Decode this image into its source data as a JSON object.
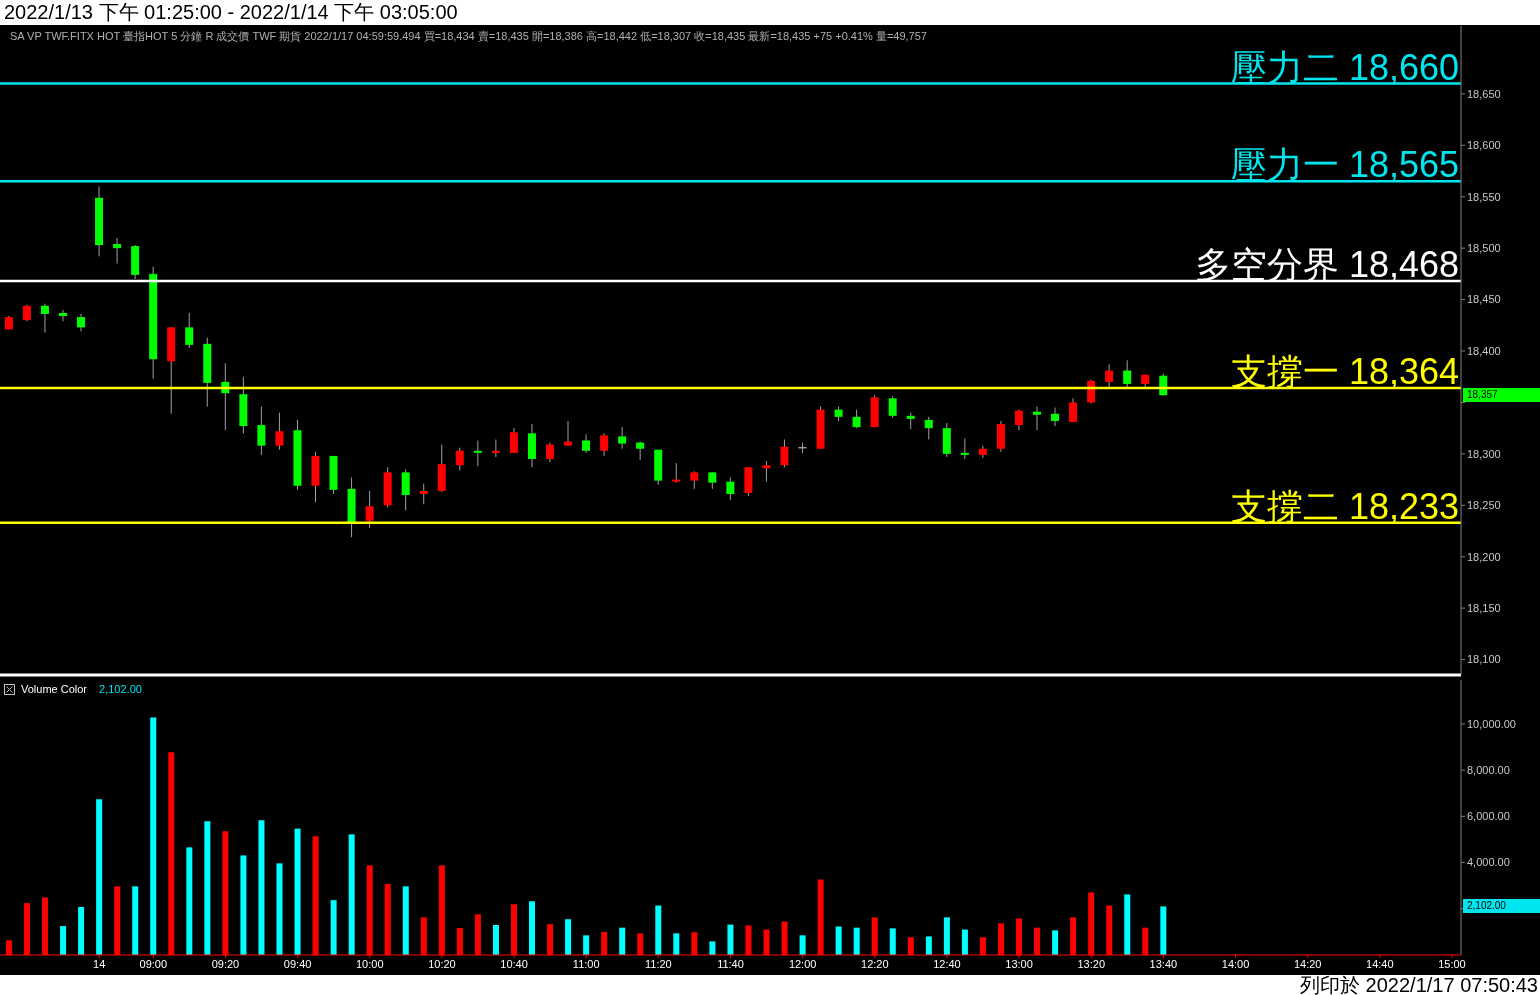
{
  "chart_data": [
    {
      "type": "candlestick",
      "title": "2022/1/13 下午 01:25:00 - 2022/1/14 下午 03:05:00",
      "categories": [
        null,
        null,
        null,
        null,
        null,
        null,
        null,
        null,
        null,
        null,
        null,
        null,
        null,
        null,
        null,
        null,
        null,
        null,
        null,
        null,
        null,
        null,
        null,
        null,
        null,
        null,
        null,
        null,
        null,
        null,
        null,
        null,
        null,
        null,
        null,
        null,
        null,
        null,
        null,
        null,
        null,
        null,
        null,
        null,
        null,
        null,
        null,
        null,
        null,
        null,
        null,
        null,
        null,
        null,
        null,
        null,
        null,
        null,
        null,
        null,
        null,
        null,
        null,
        null,
        null,
        null,
        null,
        null,
        null,
        null,
        null,
        null,
        null,
        null,
        null,
        null,
        null,
        null,
        null,
        null,
        null
      ],
      "ohlc": [
        [
          18421,
          18434,
          18421,
          18433
        ],
        [
          18430,
          18445,
          18429,
          18444
        ],
        [
          18444,
          18446,
          18418,
          18436
        ],
        [
          18437,
          18440,
          18429,
          18434
        ],
        [
          18433,
          18436,
          18419,
          18423
        ],
        [
          18549,
          18560,
          18492,
          18503
        ],
        [
          18504,
          18510,
          18485,
          18500
        ],
        [
          18502,
          18503,
          18470,
          18474
        ],
        [
          18475,
          18482,
          18373,
          18392
        ],
        [
          18390,
          18423,
          18339,
          18423
        ],
        [
          18423,
          18437,
          18403,
          18406
        ],
        [
          18407,
          18413,
          18346,
          18369
        ],
        [
          18370,
          18388,
          18323,
          18359
        ],
        [
          18358,
          18375,
          18320,
          18327
        ],
        [
          18328,
          18346,
          18299,
          18308
        ],
        [
          18308,
          18340,
          18304,
          18322
        ],
        [
          18323,
          18333,
          18265,
          18269
        ],
        [
          18269,
          18302,
          18253,
          18298
        ],
        [
          18298,
          18298,
          18261,
          18265
        ],
        [
          18266,
          18277,
          18219,
          18233
        ],
        [
          18235,
          18264,
          18228,
          18249
        ],
        [
          18250,
          18287,
          18248,
          18282
        ],
        [
          18282,
          18285,
          18245,
          18260
        ],
        [
          18261,
          18271,
          18251,
          18264
        ],
        [
          18264,
          18309,
          18263,
          18290
        ],
        [
          18289,
          18306,
          18284,
          18303
        ],
        [
          18303,
          18313,
          18288,
          18301
        ],
        [
          18301,
          18314,
          18297,
          18303
        ],
        [
          18301,
          18325,
          18301,
          18321
        ],
        [
          18320,
          18329,
          18287,
          18295
        ],
        [
          18295,
          18311,
          18292,
          18309
        ],
        [
          18308,
          18332,
          18308,
          18312
        ],
        [
          18313,
          18319,
          18301,
          18303
        ],
        [
          18303,
          18320,
          18298,
          18318
        ],
        [
          18317,
          18326,
          18305,
          18310
        ],
        [
          18311,
          18312,
          18294,
          18305
        ],
        [
          18304,
          18304,
          18270,
          18274
        ],
        [
          18273,
          18291,
          18272,
          18275
        ],
        [
          18274,
          18283,
          18266,
          18282
        ],
        [
          18282,
          18282,
          18266,
          18272
        ],
        [
          18273,
          18277,
          18255,
          18261
        ],
        [
          18262,
          18287,
          18259,
          18287
        ],
        [
          18286,
          18293,
          18273,
          18289
        ],
        [
          18289,
          18314,
          18287,
          18307
        ],
        [
          18306,
          18311,
          18301,
          18306
        ],
        [
          18305,
          18346,
          18305,
          18343
        ],
        [
          18343,
          18346,
          18332,
          18336
        ],
        [
          18336,
          18343,
          18325,
          18326
        ],
        [
          18326,
          18357,
          18326,
          18355
        ],
        [
          18354,
          18356,
          18335,
          18337
        ],
        [
          18337,
          18340,
          18324,
          18334
        ],
        [
          18333,
          18336,
          18314,
          18325
        ],
        [
          18325,
          18330,
          18297,
          18300
        ],
        [
          18301,
          18315,
          18295,
          18299
        ],
        [
          18299,
          18308,
          18296,
          18305
        ],
        [
          18305,
          18332,
          18302,
          18329
        ],
        [
          18328,
          18343,
          18323,
          18342
        ],
        [
          18341,
          18346,
          18323,
          18338
        ],
        [
          18339,
          18345,
          18327,
          18332
        ],
        [
          18331,
          18354,
          18331,
          18350
        ],
        [
          18350,
          18372,
          18349,
          18371
        ],
        [
          18370,
          18387,
          18365,
          18381
        ],
        [
          18381,
          18391,
          18365,
          18368
        ],
        [
          18368,
          18377,
          18365,
          18377
        ],
        [
          18376,
          18378,
          18357,
          18357
        ],
        null,
        null,
        null,
        null,
        null,
        null,
        null,
        null,
        null,
        null,
        null,
        null,
        null,
        null,
        null,
        null
      ],
      "colors": [
        "#ff0000",
        "#ff0000",
        "#00ff00",
        "#00ff00",
        "#00ff00",
        "#00ff00",
        "#00ff00",
        "#00ff00",
        "#00ff00",
        "#ff0000",
        "#00ff00",
        "#00ff00",
        "#00ff00",
        "#00ff00",
        "#00ff00",
        "#ff0000",
        "#00ff00",
        "#ff0000",
        "#00ff00",
        "#00ff00",
        "#ff0000",
        "#ff0000",
        "#00ff00",
        "#ff0000",
        "#ff0000",
        "#ff0000",
        "#00ff00",
        "#ff0000",
        "#ff0000",
        "#00ff00",
        "#ff0000",
        "#ff0000",
        "#00ff00",
        "#ff0000",
        "#00ff00",
        "#00ff00",
        "#00ff00",
        "#ff0000",
        "#ff0000",
        "#00ff00",
        "#00ff00",
        "#ff0000",
        "#ff0000",
        "#ff0000",
        "#a0a0a0",
        "#ff0000",
        "#00ff00",
        "#00ff00",
        "#ff0000",
        "#00ff00",
        "#00ff00",
        "#00ff00",
        "#00ff00",
        "#00ff00",
        "#ff0000",
        "#ff0000",
        "#ff0000",
        "#00ff00",
        "#00ff00",
        "#ff0000",
        "#ff0000",
        "#ff0000",
        "#00ff00",
        "#ff0000",
        "#00ff00",
        null,
        null,
        null,
        null,
        null,
        null,
        null,
        null,
        null,
        null,
        null,
        null,
        null,
        null,
        null,
        null
      ],
      "ylim": [
        18085,
        18716
      ],
      "yticks": [
        {
          "value": 18100,
          "label": "18,100"
        },
        {
          "value": 18150,
          "label": "18,150"
        },
        {
          "value": 18200,
          "label": "18,200"
        },
        {
          "value": 18250,
          "label": "18,250"
        },
        {
          "value": 18300,
          "label": "18,300"
        },
        {
          "value": 18350,
          "label": null
        },
        {
          "value": 18400,
          "label": "18,400"
        },
        {
          "value": 18450,
          "label": "18,450"
        },
        {
          "value": 18500,
          "label": "18,500"
        },
        {
          "value": 18550,
          "label": "18,550"
        },
        {
          "value": 18600,
          "label": "18,600"
        },
        {
          "value": 18650,
          "label": "18,650"
        }
      ],
      "tick_labels": "y",
      "ref_lines": [
        {
          "axis": "y",
          "value": 18660,
          "label": "壓力二 18,660",
          "color": "#00e5ee"
        },
        {
          "axis": "y",
          "value": 18565,
          "label": "壓力一 18,565",
          "color": "#00e5ee"
        },
        {
          "axis": "y",
          "value": 18468,
          "label": "多空分界 18,468",
          "color": "#ffffff"
        },
        {
          "axis": "y",
          "value": 18364,
          "label": "支撐一 18,364",
          "color": "#ffff00"
        },
        {
          "axis": "y",
          "value": 18233,
          "label": "支撐二 18,233",
          "color": "#ffff00"
        }
      ],
      "annotations": [
        "SA VP TWF.FITX HOT 臺指HOT 5 分鐘 R 成交價 TWF 期貨 2022/1/17 04:59:59.494 買=18,434 賣=18,435 開=18,386 高=18,442 低=18,307 收=18,435 最新=18,435 +75 +0.41% 量=49,757",
        "18,357"
      ]
    },
    {
      "type": "bar",
      "categories": [
        null,
        null,
        null,
        null,
        null,
        "14",
        null,
        null,
        "09:00",
        null,
        null,
        null,
        "09:20",
        null,
        null,
        null,
        "09:40",
        null,
        null,
        null,
        "10:00",
        null,
        null,
        null,
        "10:20",
        null,
        null,
        null,
        "10:40",
        null,
        null,
        null,
        "11:00",
        null,
        null,
        null,
        "11:20",
        null,
        null,
        null,
        "11:40",
        null,
        null,
        null,
        "12:00",
        null,
        null,
        null,
        "12:20",
        null,
        null,
        null,
        "12:40",
        null,
        null,
        null,
        "13:00",
        null,
        null,
        null,
        "13:20",
        null,
        null,
        null,
        "13:40",
        null,
        null,
        null,
        "14:00",
        null,
        null,
        null,
        "14:20",
        null,
        null,
        null,
        "14:40",
        null,
        null,
        null,
        "15:00"
      ],
      "series": [
        {
          "name": "Volume Color",
          "values": [
            636,
            2245,
            2490,
            1251,
            2077,
            6742,
            2971,
            2971,
            10281,
            8776,
            4657,
            5784,
            5354,
            4309,
            5831,
            3965,
            5470,
            5139,
            2374,
            5220,
            3879,
            3070,
            2971,
            1630,
            3879,
            1170,
            1763,
            1299,
            2193,
            2326,
            1333,
            1548,
            851,
            1000,
            1183,
            937,
            2141,
            937,
            985,
            589,
            1316,
            1281,
            1101,
            1449,
            851,
            3268,
            1234,
            1183,
            1630,
            1152,
            770,
            804,
            1630,
            1101,
            770,
            1367,
            1582,
            1183,
            1066,
            1630,
            2705,
            2141,
            2623,
            1183,
            2102,
            null,
            null,
            null,
            null,
            null,
            null,
            null,
            null,
            null,
            null,
            null,
            null,
            null,
            null,
            null,
            null
          ],
          "colors": [
            "#ff0000",
            "#ff0000",
            "#ff0000",
            "#00ffff",
            "#00ffff",
            "#00ffff",
            "#ff0000",
            "#00ffff",
            "#00ffff",
            "#ff0000",
            "#00ffff",
            "#00ffff",
            "#ff0000",
            "#00ffff",
            "#00ffff",
            "#00ffff",
            "#00ffff",
            "#ff0000",
            "#00ffff",
            "#00ffff",
            "#ff0000",
            "#ff0000",
            "#00ffff",
            "#ff0000",
            "#ff0000",
            "#ff0000",
            "#ff0000",
            "#00ffff",
            "#ff0000",
            "#00ffff",
            "#ff0000",
            "#00ffff",
            "#00ffff",
            "#ff0000",
            "#00ffff",
            "#ff0000",
            "#00ffff",
            "#00ffff",
            "#ff0000",
            "#00ffff",
            "#00ffff",
            "#ff0000",
            "#ff0000",
            "#ff0000",
            "#00ffff",
            "#ff0000",
            "#00ffff",
            "#00ffff",
            "#ff0000",
            "#00ffff",
            "#ff0000",
            "#00ffff",
            "#00ffff",
            "#00ffff",
            "#ff0000",
            "#ff0000",
            "#ff0000",
            "#ff0000",
            "#00ffff",
            "#ff0000",
            "#ff0000",
            "#ff0000",
            "#00ffff",
            "#ff0000",
            "#00ffff",
            null,
            null,
            null,
            null,
            null,
            null,
            null,
            null,
            null,
            null,
            null,
            null,
            null,
            null,
            null,
            null
          ]
        }
      ],
      "ylim": [
        0,
        11900
      ],
      "yticks": [
        {
          "value": 2000,
          "label": null
        },
        {
          "value": 4000,
          "label": "4,000.00"
        },
        {
          "value": 6000,
          "label": "6,000.00"
        },
        {
          "value": 8000,
          "label": "8,000.00"
        },
        {
          "value": 10000,
          "label": "10,000.00"
        }
      ],
      "annotations": [
        "2,102.00",
        "2,102.00",
        "列印於 2022/1/17 07:50:43"
      ]
    }
  ]
}
